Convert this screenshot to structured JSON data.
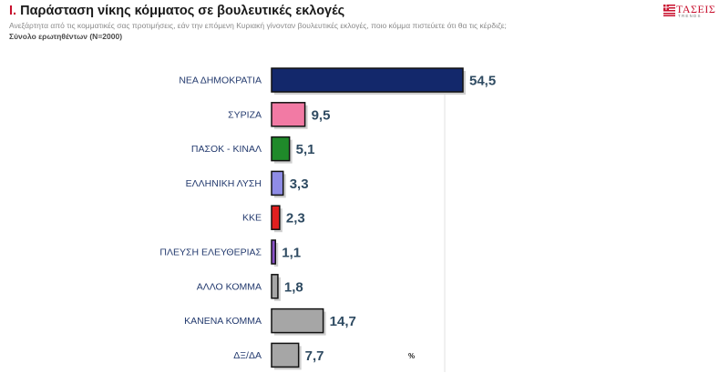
{
  "header": {
    "title_num": "I.",
    "title_text": "Παράσταση νίκης κόμματος σε βουλευτικές εκλογές",
    "subtitle": "Ανεξάρτητα από τις κομματικές σας προτιμήσεις, εάν την επόμενη Κυριακή γίνονταν βουλευτικές εκλογές, ποιο κόμμα πιστεύετε ότι θα τις κέρδιζε;",
    "sample": "Σύνολο ερωτηθέντων (N=2000)"
  },
  "logo": {
    "brand": "ΤΑΣΕΙΣ",
    "tagline": "TRENDS"
  },
  "chart_data": {
    "type": "bar",
    "orientation": "horizontal",
    "categories": [
      "ΝΕΑ ΔΗΜΟΚΡΑΤΙΑ",
      "ΣΥΡΙΖΑ",
      "ΠΑΣΟΚ - ΚΙΝΑΛ",
      "ΕΛΛΗΝΙΚΗ ΛΥΣΗ",
      "ΚΚΕ",
      "ΠΛΕΥΣΗ ΕΛΕΥΘΕΡΙΑΣ",
      "ΑΛΛΟ ΚΟΜΜΑ",
      "ΚΑΝΕΝΑ ΚΟΜΜΑ",
      "ΔΞ/ΔΑ"
    ],
    "values": [
      54.5,
      9.5,
      5.1,
      3.3,
      2.3,
      1.1,
      1.8,
      14.7,
      7.7
    ],
    "value_labels": [
      "54,5",
      "9,5",
      "5,1",
      "3,3",
      "2,3",
      "1,1",
      "1,8",
      "14,7",
      "7,7"
    ],
    "colors": [
      "#13286b",
      "#f27aa4",
      "#1f8a2a",
      "#8f8ce6",
      "#e01f1f",
      "#8a52c7",
      "#a6a6a6",
      "#a6a6a6",
      "#a6a6a6"
    ],
    "unit": "%",
    "xlim": [
      0,
      60
    ],
    "grid": false
  }
}
